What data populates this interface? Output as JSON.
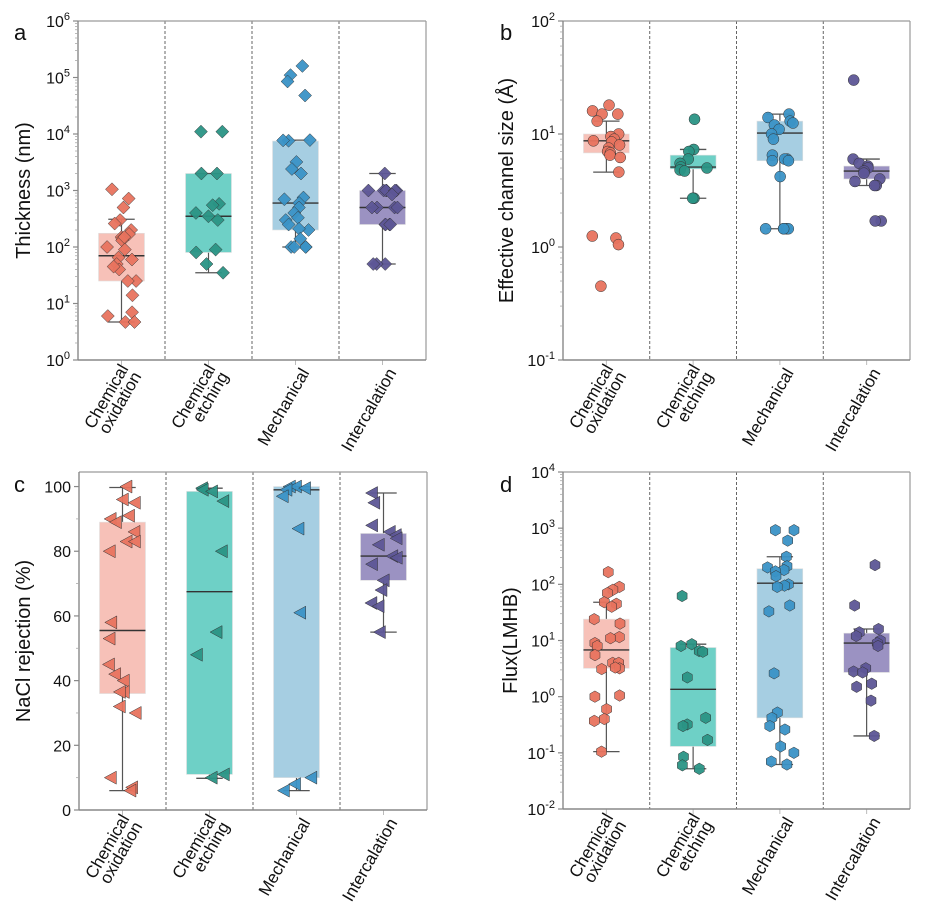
{
  "colors": {
    "marker": [
      "#E8735E",
      "#2A9485",
      "#3A92C6",
      "#5D5696"
    ],
    "box": [
      "#F7C1B8",
      "#6ED0C6",
      "#A6CEE2",
      "#9B92C2"
    ],
    "median": "#333333",
    "whisker": "#555555",
    "divider": "#555555",
    "frame": "#9a9a9a"
  },
  "chart_data": [
    {
      "panel": "a",
      "type": "box",
      "marker": "diamond",
      "ylabel": "Thickness (nm)",
      "yscale": "log",
      "ylim": [
        1,
        1000000
      ],
      "yticks": [
        {
          "base": "10",
          "exp": "0"
        },
        {
          "base": "10",
          "exp": "1"
        },
        {
          "base": "10",
          "exp": "2"
        },
        {
          "base": "10",
          "exp": "3"
        },
        {
          "base": "10",
          "exp": "4"
        },
        {
          "base": "10",
          "exp": "5"
        },
        {
          "base": "10",
          "exp": "6"
        }
      ],
      "categories": [
        [
          "Chemical",
          "oxidation"
        ],
        [
          "Chemical",
          "etching"
        ],
        [
          "Mechanical"
        ],
        [
          "Intercalation"
        ]
      ],
      "grid": false,
      "groups": [
        {
          "whisker_low": 4.7,
          "q1": 25,
          "median": 70,
          "q3": 175,
          "whisker_high": 310,
          "points": [
            1050,
            720,
            500,
            300,
            260,
            200,
            170,
            150,
            140,
            130,
            100,
            150,
            90,
            65,
            60,
            50,
            40,
            45,
            25,
            25,
            14,
            7,
            6,
            4.7,
            4.7
          ]
        },
        {
          "whisker_low": 35,
          "q1": 80,
          "median": 350,
          "q3": 2000,
          "whisker_high": 2000,
          "points": [
            11000,
            11000,
            2000,
            2000,
            580,
            550,
            400,
            350,
            300,
            90,
            80,
            50,
            35
          ]
        },
        {
          "whisker_low": 100,
          "q1": 200,
          "median": 600,
          "q3": 7500,
          "whisker_high": 7800,
          "points": [
            160000,
            110000,
            85000,
            48000,
            7800,
            7600,
            7700,
            3200,
            2400,
            2000,
            750,
            600,
            500,
            700,
            400,
            330,
            300,
            250,
            200,
            210,
            140,
            100,
            100,
            100,
            100
          ]
        },
        {
          "whisker_low": 50,
          "q1": 250,
          "median": 500,
          "q3": 1000,
          "whisker_high": 2000,
          "points": [
            2000,
            1000,
            1000,
            1000,
            1000,
            1000,
            1000,
            850,
            500,
            500,
            500,
            500,
            250,
            250,
            250,
            250,
            50,
            50,
            50
          ]
        }
      ]
    },
    {
      "panel": "b",
      "type": "box",
      "marker": "circle",
      "ylabel": "Effective channel size (Å)",
      "yscale": "log",
      "ylim": [
        0.1,
        100
      ],
      "yticks": [
        {
          "base": "10",
          "exp": "-1"
        },
        {
          "base": "10",
          "exp": "0"
        },
        {
          "base": "10",
          "exp": "1"
        },
        {
          "base": "10",
          "exp": "2"
        }
      ],
      "categories": [
        [
          "Chemical",
          "oxidation"
        ],
        [
          "Chemical",
          "etching"
        ],
        [
          "Mechanical"
        ],
        [
          "Intercalation"
        ]
      ],
      "grid": false,
      "groups": [
        {
          "whisker_low": 4.6,
          "q1": 6.8,
          "median": 8.7,
          "q3": 10,
          "whisker_high": 13,
          "points": [
            18,
            16,
            15,
            15,
            13,
            10,
            9.5,
            9,
            8.7,
            8.5,
            8,
            7.5,
            7,
            6.8,
            6.5,
            6.2,
            4.6,
            1.25,
            1.2,
            1.05,
            0.45
          ]
        },
        {
          "whisker_low": 2.7,
          "q1": 4.9,
          "median": 5.1,
          "q3": 6.5,
          "whisker_high": 7.3,
          "points": [
            13.5,
            7.3,
            7,
            6,
            5.5,
            5.1,
            5,
            4.8,
            4.7,
            2.7,
            2.7
          ]
        },
        {
          "whisker_low": 1.45,
          "q1": 5.8,
          "median": 10.2,
          "q3": 13,
          "whisker_high": 15,
          "points": [
            15,
            14,
            13,
            12.5,
            12,
            11,
            10,
            9,
            6.5,
            6,
            6,
            5.8,
            5.8,
            4.2,
            1.45,
            1.45,
            1.45,
            1.45,
            1.45
          ]
        },
        {
          "whisker_low": 3.5,
          "q1": 4,
          "median": 4.7,
          "q3": 5.2,
          "whisker_high": 6,
          "points": [
            30,
            6,
            5.5,
            5.2,
            5,
            4.7,
            4.5,
            4,
            3.8,
            3.5,
            3.5,
            1.7,
            1.7
          ]
        }
      ]
    },
    {
      "panel": "c",
      "type": "box",
      "marker": "triangle-left",
      "ylabel": "NaCl rejection (%)",
      "yscale": "linear",
      "ylim": [
        0,
        104.5
      ],
      "yticks": [
        {
          "base": "0"
        },
        {
          "base": "20"
        },
        {
          "base": "40"
        },
        {
          "base": "60"
        },
        {
          "base": "80"
        },
        {
          "base": "100"
        }
      ],
      "categories": [
        [
          "Chemical",
          "oxidation"
        ],
        [
          "Chemical",
          "etching"
        ],
        [
          "Mechanical"
        ],
        [
          "Intercalation"
        ]
      ],
      "grid": false,
      "groups": [
        {
          "whisker_low": 6,
          "q1": 36,
          "median": 55.5,
          "q3": 89,
          "whisker_high": 99.7,
          "points": [
            100,
            96,
            95,
            91,
            90,
            89,
            86,
            83,
            83,
            80,
            58,
            53,
            45,
            42,
            40,
            36.5,
            36.5,
            32,
            30,
            10,
            7,
            6
          ]
        },
        {
          "whisker_low": 9.8,
          "q1": 11,
          "median": 67.5,
          "q3": 98.5,
          "whisker_high": 99.5,
          "points": [
            99.5,
            99,
            98.5,
            95.5,
            80,
            55,
            48,
            11,
            10
          ]
        },
        {
          "whisker_low": 6,
          "q1": 10,
          "median": 99,
          "q3": 100,
          "whisker_high": 100,
          "points": [
            100,
            100,
            99.5,
            99,
            97,
            87,
            61,
            10,
            8,
            6
          ]
        },
        {
          "whisker_low": 55,
          "q1": 71,
          "median": 78.5,
          "q3": 85.5,
          "whisker_high": 98,
          "points": [
            98,
            95,
            88,
            86,
            85,
            84,
            82,
            78.5,
            78,
            76,
            71,
            68,
            64,
            63,
            55
          ]
        }
      ]
    },
    {
      "panel": "d",
      "type": "box",
      "marker": "hexagon",
      "ylabel": "Flux(LMHB)",
      "yscale": "log",
      "ylim": [
        0.01,
        10000
      ],
      "yticks": [
        {
          "base": "10",
          "exp": "-2"
        },
        {
          "base": "10",
          "exp": "-1"
        },
        {
          "base": "10",
          "exp": "0"
        },
        {
          "base": "10",
          "exp": "1"
        },
        {
          "base": "10",
          "exp": "2"
        },
        {
          "base": "10",
          "exp": "3"
        },
        {
          "base": "10",
          "exp": "4"
        }
      ],
      "categories": [
        [
          "Chemical",
          "oxidation"
        ],
        [
          "Chemical",
          "etching"
        ],
        [
          "Mechanical"
        ],
        [
          "Intercalation"
        ]
      ],
      "grid": false,
      "groups": [
        {
          "whisker_low": 0.105,
          "q1": 3.2,
          "median": 6.8,
          "q3": 24,
          "whisker_high": 48,
          "points": [
            165,
            90,
            80,
            70,
            48,
            45,
            40,
            24,
            20,
            11.5,
            11,
            9,
            8,
            5.5,
            4,
            4,
            3.2,
            3.1,
            3.3,
            1.05,
            1,
            0.6,
            0.4,
            0.37,
            0.105
          ]
        },
        {
          "whisker_low": 0.052,
          "q1": 0.13,
          "median": 1.35,
          "q3": 7.5,
          "whisker_high": 8.6,
          "points": [
            62,
            8.6,
            8,
            6.5,
            6.3,
            2.2,
            0.42,
            0.32,
            0.3,
            0.17,
            0.085,
            0.06,
            0.052
          ]
        },
        {
          "whisker_low": 0.062,
          "q1": 0.42,
          "median": 105,
          "q3": 190,
          "whisker_high": 310,
          "points": [
            920,
            920,
            600,
            310,
            210,
            200,
            180,
            170,
            140,
            100,
            95,
            90,
            42,
            33,
            2.6,
            0.52,
            0.42,
            0.3,
            0.26,
            0.13,
            0.1,
            0.07,
            0.062
          ]
        },
        {
          "whisker_low": 0.2,
          "q1": 2.7,
          "median": 9,
          "q3": 13.5,
          "whisker_high": 16,
          "points": [
            220,
            42,
            16,
            14,
            12,
            10,
            9,
            8,
            3.2,
            2.8,
            2.7,
            1.7,
            1.5,
            0.85,
            0.2
          ]
        }
      ]
    }
  ]
}
